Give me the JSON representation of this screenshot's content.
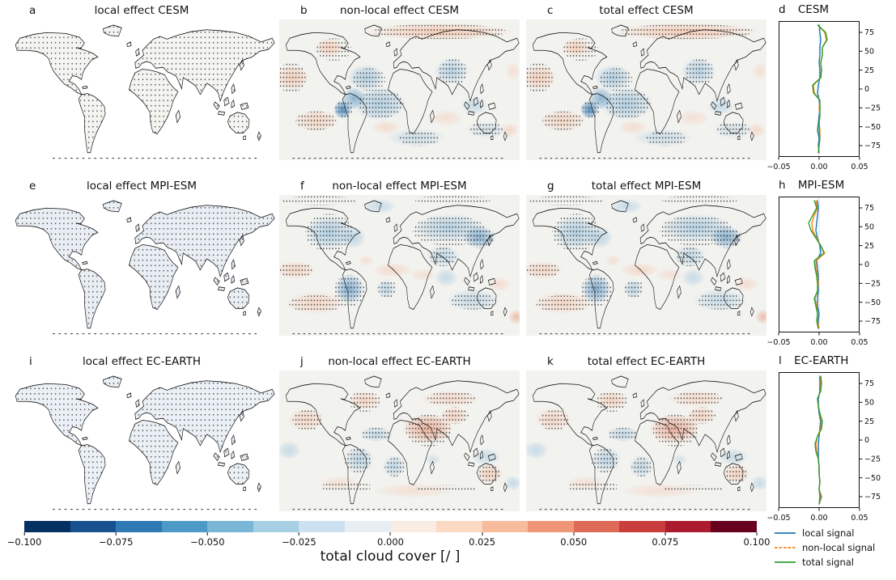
{
  "panels": {
    "a": {
      "letter": "a",
      "title": "local effect CESM"
    },
    "b": {
      "letter": "b",
      "title": "non-local effect CESM"
    },
    "c": {
      "letter": "c",
      "title": "total effect CESM"
    },
    "d": {
      "letter": "d",
      "title": "CESM"
    },
    "e": {
      "letter": "e",
      "title": "local effect MPI-ESM"
    },
    "f": {
      "letter": "f",
      "title": "non-local effect MPI-ESM"
    },
    "g": {
      "letter": "g",
      "title": "total effect MPI-ESM"
    },
    "h": {
      "letter": "h",
      "title": "MPI-ESM"
    },
    "i": {
      "letter": "i",
      "title": "local effect EC-EARTH"
    },
    "j": {
      "letter": "j",
      "title": "non-local effect EC-EARTH"
    },
    "k": {
      "letter": "k",
      "title": "total effect EC-EARTH"
    },
    "l": {
      "letter": "l",
      "title": "EC-EARTH"
    }
  },
  "colorbar": {
    "label": "total cloud cover [/ ]",
    "ticks": [
      "−0.100",
      "−0.075",
      "−0.050",
      "−0.025",
      "0.000",
      "0.025",
      "0.050",
      "0.075",
      "0.100"
    ],
    "tick_values": [
      -0.1,
      -0.075,
      -0.05,
      -0.025,
      0.0,
      0.025,
      0.05,
      0.075,
      0.1
    ],
    "range": [
      -0.1,
      0.1
    ],
    "segment_colors": [
      "#053061",
      "#17518e",
      "#2f79b5",
      "#4e9ac6",
      "#7ab6d6",
      "#a7cfe4",
      "#cbe1ef",
      "#e7eff4",
      "#f9ece3",
      "#fbd9c3",
      "#f7bc9c",
      "#ee9677",
      "#de6a57",
      "#c83e3c",
      "#ac1c2e",
      "#67001f"
    ]
  },
  "zonal_axis": {
    "x_ticks": [
      "−0.05",
      "0.00",
      "0.05"
    ],
    "x_tick_values": [
      -0.05,
      0,
      0.05
    ],
    "y_ticks": [
      "75",
      "50",
      "25",
      "0",
      "−25",
      "−50",
      "−75"
    ],
    "y_tick_values": [
      75,
      50,
      25,
      0,
      -25,
      -50,
      -75
    ],
    "xlim": [
      -0.05,
      0.05
    ],
    "ylim": [
      -90,
      90
    ]
  },
  "legend": {
    "items": [
      {
        "label": "local signal",
        "color": "#1f77b4",
        "line_style": "solid"
      },
      {
        "label": "non-local signal",
        "color": "#ff7f0e",
        "line_style": "dashed"
      },
      {
        "label": "total signal",
        "color": "#2ca02c",
        "line_style": "solid"
      }
    ]
  },
  "chart_data": [
    {
      "id": "a",
      "type": "heatmap",
      "title": "local effect CESM",
      "variable": "total cloud cover [/ ]",
      "value_range": [
        -0.1,
        0.1
      ],
      "summary": {
        "coverage": "land only, ocean masked white",
        "signal": "near zero over most land, faint positive/negative speckles",
        "stippling": "sparse dots over all land"
      }
    },
    {
      "id": "b",
      "type": "heatmap",
      "title": "non-local effect CESM",
      "variable": "total cloud cover [/ ]",
      "value_range": [
        -0.1,
        0.1
      ],
      "summary": {
        "positive": [
          "Arctic Ocean / Siberian coast band",
          "northwest Canada",
          "northeast Pacific",
          "south-central Pacific",
          "south Atlantic",
          "around New Zealand"
        ],
        "negative": [
          "central North Atlantic",
          "tropical Atlantic and West Africa",
          "equatorial east Pacific (strong)",
          "south Asia",
          "Southern Ocean patches"
        ],
        "stippling": "dots over strong signal regions"
      }
    },
    {
      "id": "c",
      "type": "heatmap",
      "title": "total effect CESM",
      "variable": "total cloud cover [/ ]",
      "value_range": [
        -0.1,
        0.1
      ],
      "summary": {
        "note": "nearly identical pattern to non-local effect CESM"
      }
    },
    {
      "id": "e",
      "type": "heatmap",
      "title": "local effect MPI-ESM",
      "variable": "total cloud cover [/ ]",
      "value_range": [
        -0.1,
        0.1
      ],
      "summary": {
        "coverage": "land only, ocean masked white",
        "signal": "weak negative (light blue) over Canada, Siberia, Amazon, central Africa",
        "stippling": "dots over all land"
      }
    },
    {
      "id": "f",
      "type": "heatmap",
      "title": "non-local effect MPI-ESM",
      "variable": "total cloud cover [/ ]",
      "value_range": [
        -0.1,
        0.1
      ],
      "summary": {
        "positive": [
          "North Pacific subtropical band",
          "southeast Pacific band",
          "tropical Atlantic / Indian ocean band",
          "west Pacific subtropics"
        ],
        "negative": [
          "Canada / eastern North America",
          "Siberia and northeast Asia (strong)",
          "central Asia",
          "Amazon (strong)",
          "central Africa",
          "south Indian ocean / Australia"
        ],
        "stippling": "dots over strong signal regions"
      }
    },
    {
      "id": "g",
      "type": "heatmap",
      "title": "total effect MPI-ESM",
      "variable": "total cloud cover [/ ]",
      "value_range": [
        -0.1,
        0.1
      ],
      "summary": {
        "note": "nearly identical pattern to non-local effect MPI-ESM"
      }
    },
    {
      "id": "i",
      "type": "heatmap",
      "title": "local effect EC-EARTH",
      "variable": "total cloud cover [/ ]",
      "value_range": [
        -0.1,
        0.1
      ],
      "summary": {
        "coverage": "land only, ocean masked white",
        "signal": "near zero with faint blue tint over land",
        "stippling": "dots over all land"
      }
    },
    {
      "id": "j",
      "type": "heatmap",
      "title": "non-local effect EC-EARTH",
      "variable": "total cloud cover [/ ]",
      "value_range": [
        -0.1,
        0.1
      ],
      "summary": {
        "positive": [
          "Sahara / Arabia / Middle East (strong)",
          "central Asia",
          "northeast Canada",
          "Siberian band",
          "northeast Pacific",
          "Australia",
          "southern midlatitude patches"
        ],
        "negative": [
          "mid North Atlantic",
          "tropical South America / Atlantic",
          "gulf of Guinea region",
          "equatorial west Pacific",
          "southeast Pacific",
          "west Pacific around Indonesia"
        ],
        "stippling": "dots over strong signal regions"
      }
    },
    {
      "id": "k",
      "type": "heatmap",
      "title": "total effect EC-EARTH",
      "variable": "total cloud cover [/ ]",
      "value_range": [
        -0.1,
        0.1
      ],
      "summary": {
        "note": "nearly identical pattern to non-local effect EC-EARTH"
      }
    },
    {
      "id": "cesm",
      "type": "line",
      "title": "CESM",
      "xlim": [
        -0.05,
        0.05
      ],
      "ylim": [
        -90,
        90
      ],
      "lat": [
        -85,
        -75,
        -65,
        -55,
        -45,
        -35,
        -25,
        -15,
        -5,
        5,
        15,
        25,
        35,
        45,
        55,
        65,
        75,
        85
      ],
      "series": [
        {
          "name": "local signal",
          "color": "#1f77b4",
          "values": [
            0.0,
            -0.001,
            0.0,
            -0.002,
            -0.001,
            0.0,
            0.001,
            0.0,
            -0.002,
            -0.001,
            0.001,
            0.001,
            0.0,
            0.001,
            0.001,
            0.002,
            0.001,
            0.0
          ]
        },
        {
          "name": "non-local signal",
          "color": "#ff7f0e",
          "values": [
            -0.001,
            0.0,
            0.001,
            0.001,
            0.0,
            0.001,
            0.0,
            0.001,
            -0.006,
            -0.007,
            0.002,
            0.003,
            0.002,
            0.004,
            0.004,
            0.009,
            0.007,
            -0.002
          ]
        },
        {
          "name": "total signal",
          "color": "#2ca02c",
          "values": [
            -0.001,
            0.0,
            0.001,
            0.0,
            0.0,
            0.001,
            0.001,
            0.001,
            -0.007,
            -0.008,
            0.002,
            0.003,
            0.002,
            0.004,
            0.004,
            0.01,
            0.008,
            -0.002
          ]
        }
      ]
    },
    {
      "id": "mpi-esm",
      "type": "line",
      "title": "MPI-ESM",
      "xlim": [
        -0.05,
        0.05
      ],
      "ylim": [
        -90,
        90
      ],
      "lat": [
        -85,
        -75,
        -65,
        -55,
        -45,
        -35,
        -25,
        -15,
        -5,
        5,
        15,
        25,
        35,
        45,
        55,
        65,
        75,
        85
      ],
      "series": [
        {
          "name": "local signal",
          "color": "#1f77b4",
          "values": [
            -0.001,
            -0.001,
            0.0,
            -0.002,
            -0.002,
            -0.001,
            -0.001,
            -0.001,
            -0.002,
            -0.003,
            0.002,
            0.001,
            -0.002,
            -0.004,
            -0.003,
            -0.002,
            -0.001,
            -0.002
          ]
        },
        {
          "name": "non-local signal",
          "color": "#ff7f0e",
          "values": [
            0.0,
            -0.002,
            -0.002,
            -0.003,
            -0.005,
            -0.002,
            -0.001,
            -0.002,
            -0.004,
            -0.004,
            0.007,
            0.002,
            -0.003,
            -0.008,
            -0.009,
            -0.006,
            -0.002,
            -0.004
          ]
        },
        {
          "name": "total signal",
          "color": "#2ca02c",
          "values": [
            -0.001,
            -0.003,
            -0.002,
            -0.004,
            -0.006,
            -0.002,
            -0.002,
            -0.003,
            -0.005,
            -0.006,
            0.006,
            0.002,
            -0.004,
            -0.01,
            -0.013,
            -0.008,
            -0.003,
            -0.006
          ]
        }
      ]
    },
    {
      "id": "ec-earth",
      "type": "line",
      "title": "EC-EARTH",
      "xlim": [
        -0.05,
        0.05
      ],
      "ylim": [
        -90,
        90
      ],
      "lat": [
        -85,
        -75,
        -65,
        -55,
        -45,
        -35,
        -25,
        -15,
        -5,
        5,
        15,
        25,
        35,
        45,
        55,
        65,
        75,
        85
      ],
      "series": [
        {
          "name": "local signal",
          "color": "#1f77b4",
          "values": [
            0.0,
            0.003,
            0.0,
            0.001,
            0.0,
            0.0,
            -0.001,
            -0.001,
            -0.001,
            0.0,
            0.001,
            0.002,
            0.0,
            -0.001,
            -0.001,
            0.001,
            0.001,
            0.001
          ]
        },
        {
          "name": "non-local signal",
          "color": "#ff7f0e",
          "values": [
            0.0,
            0.002,
            0.0,
            0.001,
            0.0,
            0.0,
            -0.001,
            -0.003,
            -0.004,
            -0.002,
            0.002,
            0.003,
            0.001,
            -0.001,
            -0.002,
            0.002,
            0.002,
            0.002
          ]
        },
        {
          "name": "total signal",
          "color": "#2ca02c",
          "values": [
            0.0,
            0.001,
            0.0,
            0.001,
            0.0,
            0.0,
            -0.001,
            -0.004,
            -0.005,
            -0.002,
            0.003,
            0.004,
            0.001,
            -0.001,
            -0.002,
            0.002,
            0.003,
            0.002
          ]
        }
      ]
    }
  ]
}
